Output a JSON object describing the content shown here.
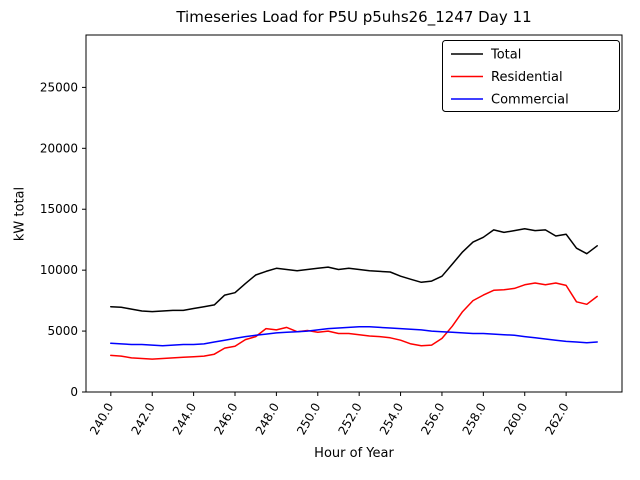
{
  "chart_data": {
    "type": "line",
    "title": "Timeseries Load for P5U p5uhs26_1247  Day 11",
    "xlabel": "Hour of Year",
    "ylabel": "kW total",
    "xlim": [
      238.8,
      264.7
    ],
    "ylim": [
      0,
      29300
    ],
    "grid": false,
    "legend_position": "upper right",
    "x_ticks": [
      240,
      242,
      244,
      246,
      248,
      250,
      252,
      254,
      256,
      258,
      260,
      262
    ],
    "x_tick_labels": [
      "240.0",
      "242.0",
      "244.0",
      "246.0",
      "248.0",
      "250.0",
      "252.0",
      "254.0",
      "256.0",
      "258.0",
      "260.0",
      "262.0"
    ],
    "y_ticks": [
      0,
      5000,
      10000,
      15000,
      20000,
      25000
    ],
    "y_tick_labels": [
      "0",
      "5000",
      "10000",
      "15000",
      "20000",
      "25000"
    ],
    "x": [
      240.0,
      240.5,
      241.0,
      241.5,
      242.0,
      242.5,
      243.0,
      243.5,
      244.0,
      244.5,
      245.0,
      245.5,
      246.0,
      246.5,
      247.0,
      247.5,
      248.0,
      248.5,
      249.0,
      249.5,
      250.0,
      250.5,
      251.0,
      251.5,
      252.0,
      252.5,
      253.0,
      253.5,
      254.0,
      254.5,
      255.0,
      255.5,
      256.0,
      256.5,
      257.0,
      257.5,
      258.0,
      258.5,
      259.0,
      259.5,
      260.0,
      260.5,
      261.0,
      261.5,
      262.0,
      262.5,
      263.0,
      263.5
    ],
    "series": [
      {
        "name": "Total",
        "color": "#000000",
        "values": [
          7000,
          6950,
          6800,
          6650,
          6600,
          6650,
          6700,
          6700,
          6850,
          7000,
          7150,
          7950,
          8150,
          8900,
          9600,
          9900,
          10150,
          10050,
          9950,
          10050,
          10150,
          10250,
          10050,
          10150,
          10050,
          9950,
          9900,
          9850,
          9500,
          9250,
          9000,
          9100,
          9500,
          10500,
          11500,
          12300,
          12700,
          13300,
          13100,
          13250,
          13400,
          13250,
          13300,
          12800,
          12950,
          11800,
          11350,
          12000
        ]
      },
      {
        "name": "Residential",
        "color": "#ff0000",
        "values": [
          3000,
          2950,
          2800,
          2750,
          2700,
          2750,
          2800,
          2850,
          2900,
          2950,
          3100,
          3600,
          3750,
          4300,
          4550,
          5200,
          5100,
          5300,
          4950,
          5050,
          4900,
          5000,
          4800,
          4800,
          4700,
          4600,
          4550,
          4450,
          4250,
          3950,
          3800,
          3850,
          4400,
          5400,
          6600,
          7500,
          7950,
          8350,
          8400,
          8500,
          8800,
          8950,
          8800,
          8950,
          8750,
          7400,
          7200,
          7850
        ]
      },
      {
        "name": "Commercial",
        "color": "#0000ff",
        "values": [
          4000,
          3950,
          3900,
          3900,
          3850,
          3800,
          3850,
          3900,
          3900,
          3950,
          4100,
          4250,
          4400,
          4550,
          4650,
          4750,
          4850,
          4900,
          4950,
          5000,
          5100,
          5200,
          5250,
          5300,
          5350,
          5350,
          5300,
          5250,
          5200,
          5150,
          5100,
          5000,
          4950,
          4900,
          4850,
          4800,
          4800,
          4750,
          4700,
          4650,
          4550,
          4450,
          4350,
          4250,
          4150,
          4100,
          4050,
          4100
        ]
      }
    ]
  }
}
